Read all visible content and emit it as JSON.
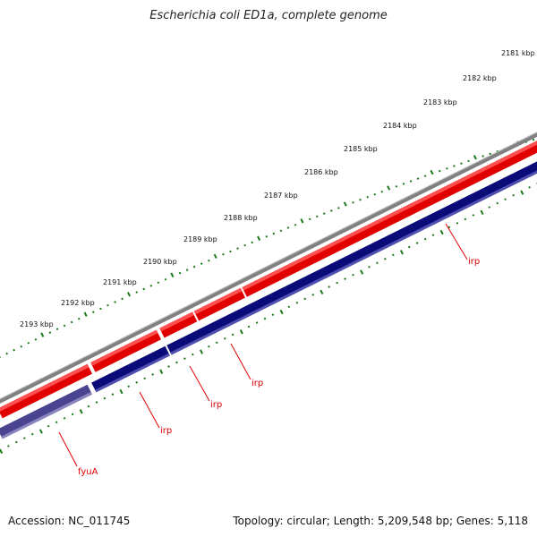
{
  "title": "Escherichia coli ED1a, complete genome",
  "footer": {
    "accession": "Accession: NC_011745",
    "topology": "Topology: circular; Length: 5,209,548 bp; Genes: 5,118"
  },
  "kbp_labels": [
    "2181 kbp",
    "2182 kbp",
    "2183 kbp",
    "2184 kbp",
    "2185 kbp",
    "2186 kbp",
    "2187 kbp",
    "2188 kbp",
    "2189 kbp",
    "2190 kbp",
    "2191 kbp",
    "2192 kbp",
    "2193 kbp"
  ],
  "gene_labels": [
    "irp",
    "irp",
    "irp",
    "irp",
    "fyuA"
  ],
  "colors": {
    "forward_strand": "#e00000",
    "reverse_strand": "#0a0a78",
    "reverse_strand_light": "#4a4490",
    "backbone": "#808080",
    "ticks": "#1a7a1a",
    "label": "#e00000"
  }
}
